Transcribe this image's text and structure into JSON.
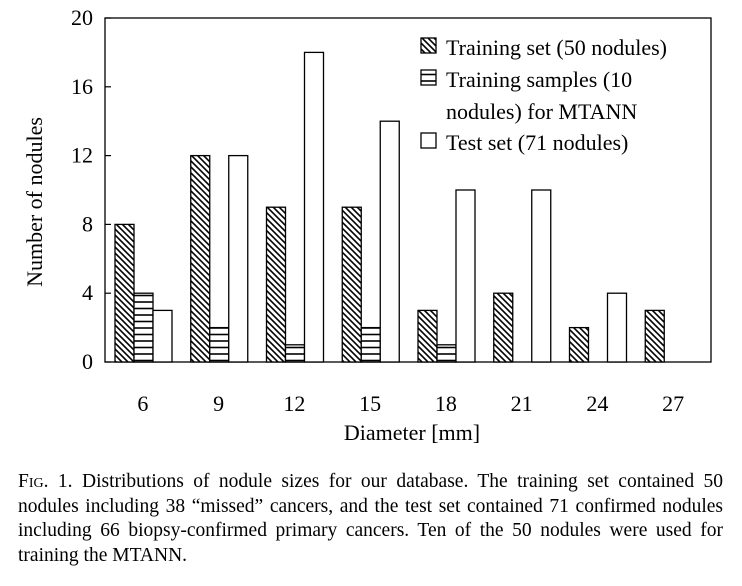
{
  "chart_data": {
    "type": "bar",
    "categories": [
      "6",
      "9",
      "12",
      "15",
      "18",
      "21",
      "24",
      "27"
    ],
    "series": [
      {
        "name": "Training set (50 nodules)",
        "pattern": "diagonal-hatch",
        "values": [
          8,
          12,
          9,
          9,
          3,
          4,
          2,
          3
        ]
      },
      {
        "name": "Training samples (10 nodules) for MTANN",
        "pattern": "horizontal-lines",
        "values": [
          4,
          2,
          1,
          2,
          1,
          0,
          0,
          0
        ]
      },
      {
        "name": "Test set (71 nodules)",
        "pattern": "empty",
        "values": [
          3,
          12,
          18,
          14,
          10,
          10,
          4,
          0
        ]
      }
    ],
    "legend_lines": [
      [
        "Training set (50 nodules)"
      ],
      [
        "Training samples (10",
        "nodules) for MTANN"
      ],
      [
        "Test set (71 nodules)"
      ]
    ],
    "xlabel": "Diameter [mm]",
    "ylabel": "Number of nodules",
    "ylim": [
      0,
      20
    ],
    "yticks": [
      "0",
      "4",
      "8",
      "12",
      "16",
      "20"
    ],
    "legend_position": "top-right",
    "grid": false
  },
  "caption": {
    "fig_label": "Fig. 1.",
    "text": "Distributions of nodule sizes for our database. The training set contained 50 nodules including 38 “missed” cancers, and the test set contained 71 confirmed nodules including 66 biopsy-confirmed primary cancers. Ten of the 50 nodules were used for training the MTANN."
  }
}
